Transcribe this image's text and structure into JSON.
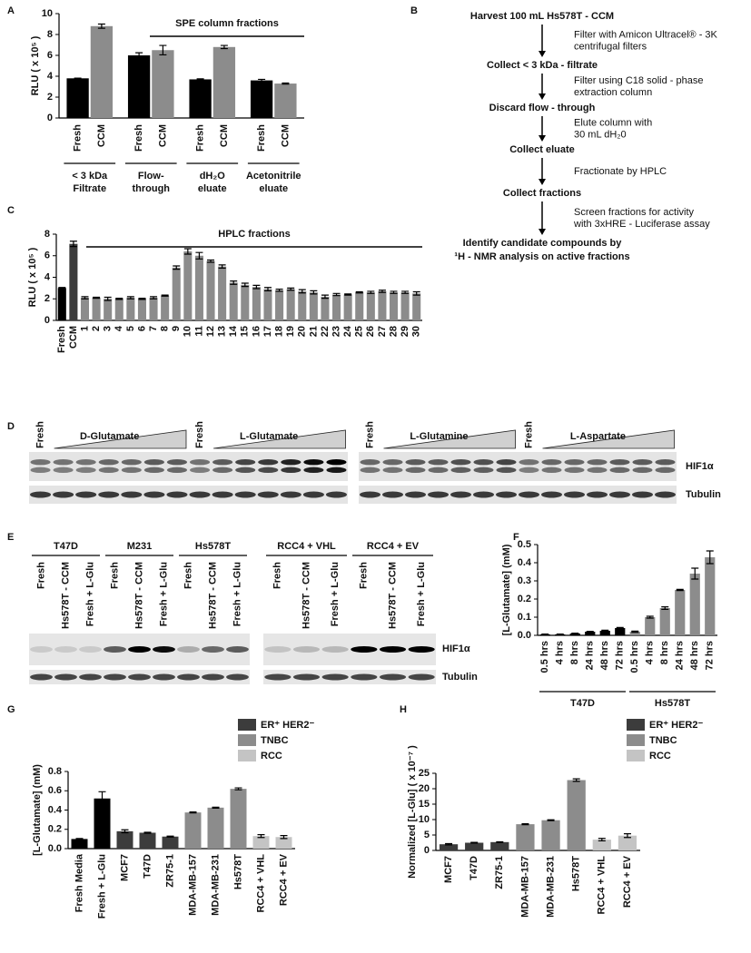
{
  "panel_labels": [
    "A",
    "B",
    "C",
    "D",
    "E",
    "F",
    "G",
    "H"
  ],
  "chart_data": [
    {
      "type": "bar",
      "ylabel": "RLU ( x 10⁵ )",
      "annotation": "SPE column fractions",
      "categories": [
        [
          "< 3 kDa",
          "Filtrate"
        ],
        [
          "Flow-",
          "through"
        ],
        [
          "dH₂O",
          "eluate"
        ],
        [
          "Acetonitrile",
          "eluate"
        ]
      ],
      "series": [
        {
          "name": "Fresh",
          "color": "#000000",
          "values": [
            3.8,
            6.0,
            3.7,
            3.6
          ],
          "errors": [
            0.02,
            0.25,
            0.05,
            0.1
          ]
        },
        {
          "name": "CCM",
          "color": "#8c8c8c",
          "values": [
            8.8,
            6.5,
            6.8,
            3.3
          ],
          "errors": [
            0.2,
            0.45,
            0.15,
            0.05
          ]
        }
      ],
      "ylim": [
        0,
        10
      ],
      "yticks": [
        0,
        2,
        4,
        6,
        8,
        10
      ]
    },
    {
      "type": "bar",
      "ylabel": "RLU ( x 10⁵ )",
      "annotation": "HPLC fractions",
      "categories": [
        "Fresh",
        "CCM",
        "1",
        "2",
        "3",
        "4",
        "5",
        "6",
        "7",
        "8",
        "9",
        "10",
        "11",
        "12",
        "13",
        "14",
        "15",
        "16",
        "17",
        "18",
        "19",
        "20",
        "21",
        "22",
        "23",
        "24",
        "25",
        "26",
        "27",
        "28",
        "29",
        "30"
      ],
      "values": [
        3.0,
        7.1,
        2.1,
        2.1,
        2.0,
        2.0,
        2.1,
        2.0,
        2.1,
        2.3,
        4.9,
        6.4,
        6.0,
        5.5,
        5.0,
        3.5,
        3.3,
        3.1,
        2.9,
        2.8,
        2.9,
        2.7,
        2.6,
        2.2,
        2.4,
        2.4,
        2.6,
        2.6,
        2.7,
        2.6,
        2.6,
        2.5
      ],
      "errors": [
        0.05,
        0.25,
        0.1,
        0.05,
        0.15,
        0.05,
        0.1,
        0.05,
        0.1,
        0.05,
        0.15,
        0.25,
        0.3,
        0.1,
        0.15,
        0.15,
        0.15,
        0.15,
        0.15,
        0.1,
        0.1,
        0.15,
        0.15,
        0.15,
        0.1,
        0.05,
        0.05,
        0.1,
        0.1,
        0.1,
        0.1,
        0.15
      ],
      "colors": [
        "#000000",
        "#3c3c3c",
        "#8c8c8c",
        "#8c8c8c",
        "#8c8c8c",
        "#8c8c8c",
        "#8c8c8c",
        "#8c8c8c",
        "#8c8c8c",
        "#8c8c8c",
        "#8c8c8c",
        "#8c8c8c",
        "#8c8c8c",
        "#8c8c8c",
        "#8c8c8c",
        "#8c8c8c",
        "#8c8c8c",
        "#8c8c8c",
        "#8c8c8c",
        "#8c8c8c",
        "#8c8c8c",
        "#8c8c8c",
        "#8c8c8c",
        "#8c8c8c",
        "#8c8c8c",
        "#8c8c8c",
        "#8c8c8c",
        "#8c8c8c",
        "#8c8c8c",
        "#8c8c8c",
        "#8c8c8c",
        "#8c8c8c"
      ],
      "ylim": [
        0,
        8
      ],
      "yticks": [
        0,
        2,
        4,
        6,
        8
      ]
    },
    {
      "type": "bar",
      "ylabel": "[L-Glutamate] (mM)",
      "categories": [
        "0.5 hrs",
        "4 hrs",
        "8 hrs",
        "24 hrs",
        "48 hrs",
        "72 hrs",
        "0.5 hrs",
        "4 hrs",
        "8 hrs",
        "24 hrs",
        "48 hrs",
        "72 hrs"
      ],
      "series": [
        {
          "name": "T47D",
          "color": "#000000",
          "values": [
            0.005,
            0.005,
            0.01,
            0.02,
            0.025,
            0.04,
            null,
            null,
            null,
            null,
            null,
            null
          ],
          "errors": [
            0.002,
            0.002,
            0.002,
            0.002,
            0.003,
            0.003,
            null,
            null,
            null,
            null,
            null,
            null
          ]
        },
        {
          "name": "Hs578T",
          "color": "#8c8c8c",
          "values": [
            null,
            null,
            null,
            null,
            null,
            null,
            0.02,
            0.1,
            0.15,
            0.25,
            0.34,
            0.43
          ],
          "errors": [
            null,
            null,
            null,
            null,
            null,
            null,
            0.003,
            0.005,
            0.007,
            0.003,
            0.03,
            0.035
          ]
        }
      ],
      "ylim": [
        0,
        0.5
      ],
      "yticks": [
        {
          "value": 0,
          "label": "0.0"
        },
        0.1,
        0.2,
        0.3,
        0.4,
        0.5
      ]
    },
    {
      "type": "bar",
      "ylabel": "[L-Glutamate] (mM)",
      "categories": [
        "Fresh Media",
        "Fresh + L-Glu",
        "MCF7",
        "T47D",
        "ZR75-1",
        "MDA-MB-157",
        "MDA-MB-231",
        "Hs578T",
        "RCC4 + VHL",
        "RCC4 + EV"
      ],
      "values": [
        0.1,
        0.52,
        0.18,
        0.165,
        0.125,
        0.375,
        0.425,
        0.62,
        0.13,
        0.12
      ],
      "errors": [
        0.005,
        0.07,
        0.015,
        0.005,
        0.005,
        0.005,
        0.005,
        0.01,
        0.015,
        0.015
      ],
      "colors": [
        "#000000",
        "#000000",
        "#3c3c3c",
        "#3c3c3c",
        "#3c3c3c",
        "#8c8c8c",
        "#8c8c8c",
        "#8c8c8c",
        "#c4c4c4",
        "#c4c4c4"
      ],
      "legend": [
        {
          "name": "ER⁺ HER2⁻",
          "color": "#3c3c3c"
        },
        {
          "name": "TNBC",
          "color": "#8c8c8c"
        },
        {
          "name": "RCC",
          "color": "#c4c4c4"
        }
      ],
      "ylim": [
        0,
        0.8
      ],
      "yticks": [
        {
          "value": 0,
          "label": "0.0"
        },
        0.2,
        0.4,
        0.6,
        0.8
      ]
    },
    {
      "type": "bar",
      "ylabel": "Normalized [L-Glu] ( x 10⁻⁷ )",
      "categories": [
        "MCF7",
        "T47D",
        "ZR75-1",
        "MDA-MB-157",
        "MDA-MB-231",
        "Hs578T",
        "RCC4 + VHL",
        "RCC4 + EV"
      ],
      "values": [
        2.0,
        2.5,
        2.7,
        8.5,
        9.8,
        22.8,
        3.5,
        4.8
      ],
      "errors": [
        0.2,
        0.1,
        0.1,
        0.15,
        0.15,
        0.4,
        0.4,
        0.6
      ],
      "colors": [
        "#3c3c3c",
        "#3c3c3c",
        "#3c3c3c",
        "#8c8c8c",
        "#8c8c8c",
        "#8c8c8c",
        "#c4c4c4",
        "#c4c4c4"
      ],
      "legend": [
        {
          "name": "ER⁺ HER2⁻",
          "color": "#3c3c3c"
        },
        {
          "name": "TNBC",
          "color": "#8c8c8c"
        },
        {
          "name": "RCC",
          "color": "#c4c4c4"
        }
      ],
      "ylim": [
        0,
        25
      ],
      "yticks": [
        0,
        5,
        10,
        15,
        20,
        25
      ]
    }
  ],
  "flowchart": {
    "steps": [
      [
        "Harvest 100 mL Hs578T - CCM"
      ],
      [
        "Collect < 3 kDa - filtrate"
      ],
      [
        "Discard flow - through"
      ],
      [
        "Collect eluate"
      ],
      [
        "Collect fractions"
      ],
      [
        "Identify candidate compounds by",
        "¹H - NMR analysis on active fractions"
      ]
    ],
    "notes": [
      [
        "Filter with Amicon Ultracel® - 3K",
        "centrifugal filters"
      ],
      [
        "Filter using C18 solid - phase",
        "extraction column"
      ],
      [
        "Elute column with",
        "30 mL dH₂0"
      ],
      [
        "Fractionate by HPLC"
      ],
      [
        "Screen fractions for activity",
        "with 3xHRE - Luciferase assay"
      ]
    ]
  },
  "blot_d": {
    "groups": [
      {
        "control": "Fresh",
        "treatment": "D-Glutamate"
      },
      {
        "control": "Fresh",
        "treatment": "L-Glutamate"
      },
      {
        "control": "Fresh",
        "treatment": "L-Glutamine"
      },
      {
        "control": "Fresh",
        "treatment": "L-Aspartate"
      }
    ],
    "bands": [
      "HIF1α",
      "Tubulin"
    ]
  },
  "blot_e": {
    "groups": [
      {
        "name": "T47D",
        "lanes": [
          "Fresh",
          "Hs578T - CCM",
          "Fresh + L-Glu"
        ]
      },
      {
        "name": "M231",
        "lanes": [
          "Fresh",
          "Hs578T - CCM",
          "Fresh + L-Glu"
        ]
      },
      {
        "name": "Hs578T",
        "lanes": [
          "Fresh",
          "Hs578T - CCM",
          "Fresh + L-Glu"
        ]
      },
      {
        "name": "RCC4 + VHL",
        "lanes": [
          "Fresh",
          "Hs578T - CCM",
          "Fresh + L-Glu"
        ]
      },
      {
        "name": "RCC4 + EV",
        "lanes": [
          "Fresh",
          "Hs578T - CCM",
          "Fresh + L-Glu"
        ]
      }
    ],
    "bands": [
      "HIF1α",
      "Tubulin"
    ]
  }
}
